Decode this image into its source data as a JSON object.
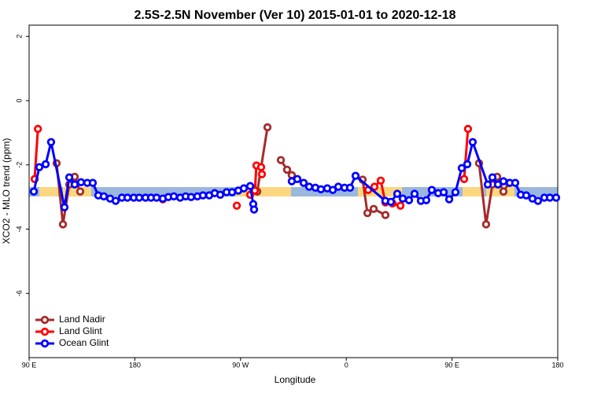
{
  "chart_data": {
    "type": "line",
    "title": "2.5S-2.5N November (Ver 10)   2015-01-01 to 2020-12-18",
    "x_label": "Longitude",
    "y_label": "XCO2 - MLO trend (ppm)",
    "xlim": [
      90,
      540
    ],
    "ylim": [
      -8,
      2.35
    ],
    "xticks": [
      {
        "value": 90,
        "label": "90 E"
      },
      180,
      {
        "value": 270,
        "label": "90 W"
      },
      0,
      {
        "value": 450,
        "label": "90 E"
      },
      180
    ],
    "xtick_values": [
      90,
      180,
      270,
      360,
      450,
      540
    ],
    "yticks": [
      2,
      0,
      -2,
      -4,
      -6
    ],
    "legend": "bottom-left",
    "series": [
      {
        "name": "Land Nadir",
        "color": "#a52a2a",
        "x": [
          113.4,
          118.8,
          124.2,
          128.8,
          133.5,
          null,
          284.2,
          292.9,
          null,
          304.3,
          309.6,
          313.6,
          null,
          373.9,
          378.0,
          383.3,
          393.3,
          null,
          473.0,
          479.0,
          484.4,
          488.4,
          493.8,
          498.5
        ],
        "values": [
          -1.95,
          -3.85,
          -2.61,
          -2.37,
          -2.83,
          null,
          -2.83,
          -0.83,
          null,
          -1.85,
          -2.15,
          -2.32,
          null,
          -2.46,
          -3.5,
          -3.37,
          -3.56,
          null,
          -1.95,
          -3.85,
          -2.61,
          -2.37,
          -2.83,
          -2.56
        ]
      },
      {
        "name": "Land Glint",
        "color": "#ff0000",
        "x": [
          94.7,
          97.5,
          null,
          203.8,
          null,
          266.8,
          null,
          278.2,
          282.2,
          283.5,
          287.5,
          288.2,
          null,
          378.6,
          384.0,
          389.3,
          393.3,
          399.4,
          406.1,
          null,
          460.3,
          463.6
        ],
        "values": [
          -2.44,
          -0.88,
          null,
          -3.07,
          null,
          -3.27,
          null,
          -2.93,
          -2.8,
          -2.02,
          -2.07,
          -2.29,
          null,
          -2.78,
          -2.68,
          -2.49,
          -3.17,
          -3.2,
          -3.27,
          null,
          -2.44,
          -0.88
        ]
      },
      {
        "name": "Ocean Glint",
        "color": "#0000ff",
        "x": [
          94.0,
          98.7,
          104.1,
          108.7,
          120.1,
          124.2,
          128.8,
          134.2,
          139.5,
          144.2,
          148.9,
          153.6,
          159.0,
          163.7,
          169.0,
          173.7,
          179.1,
          183.7,
          189.1,
          193.8,
          198.5,
          203.8,
          208.5,
          213.2,
          218.6,
          223.3,
          227.9,
          233.3,
          238.0,
          243.3,
          248.0,
          252.7,
          258.1,
          262.8,
          268.1,
          272.8,
          278.2,
          280.8,
          281.5,
          null,
          313.6,
          318.3,
          323.7,
          328.4,
          333.7,
          338.4,
          343.8,
          348.5,
          353.2,
          358.5,
          363.2,
          367.9,
          393.3,
          398.0,
          403.4,
          408.1,
          413.4,
          418.1,
          423.5,
          428.1,
          432.8,
          438.2,
          442.9,
          447.6,
          452.9,
          458.3,
          463.0,
          467.6,
          480.4,
          484.4,
          489.1,
          493.8,
          499.2,
          503.8,
          508.5,
          513.2,
          518.5,
          523.2,
          528.6,
          533.3,
          538.6
        ],
        "values": [
          -2.83,
          -2.07,
          -1.98,
          -1.29,
          -3.32,
          -2.39,
          -2.61,
          -2.54,
          -2.56,
          -2.56,
          -2.95,
          -2.98,
          -3.05,
          -3.12,
          -3.02,
          -3.02,
          -3.02,
          -3.02,
          -3.02,
          -3.02,
          -3.02,
          -3.05,
          -3.0,
          -2.98,
          -3.02,
          -2.98,
          -3.0,
          -2.98,
          -2.95,
          -2.95,
          -2.88,
          -2.93,
          -2.85,
          -2.85,
          -2.8,
          -2.73,
          -2.66,
          -3.22,
          -3.39,
          null,
          -2.51,
          -2.44,
          -2.56,
          -2.68,
          -2.71,
          -2.76,
          -2.73,
          -2.78,
          -2.68,
          -2.71,
          -2.71,
          -2.34,
          -3.12,
          -3.15,
          -2.9,
          -3.05,
          -3.1,
          -2.9,
          -3.12,
          -3.1,
          -2.78,
          -2.88,
          -2.85,
          -3.07,
          -2.85,
          -2.1,
          -1.98,
          -1.29,
          -2.61,
          -2.39,
          -2.61,
          -2.51,
          -2.56,
          -2.56,
          -2.93,
          -2.95,
          -3.05,
          -3.12,
          -3.02,
          -3.02,
          -3.02
        ]
      }
    ]
  }
}
